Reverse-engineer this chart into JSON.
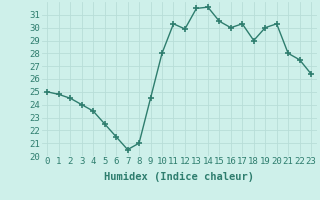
{
  "x": [
    0,
    1,
    2,
    3,
    4,
    5,
    6,
    7,
    8,
    9,
    10,
    11,
    12,
    13,
    14,
    15,
    16,
    17,
    18,
    19,
    20,
    21,
    22,
    23
  ],
  "y": [
    25.0,
    24.8,
    24.5,
    24.0,
    23.5,
    22.5,
    21.5,
    20.5,
    21.0,
    24.5,
    28.0,
    30.3,
    29.9,
    31.5,
    31.6,
    30.5,
    30.0,
    30.3,
    29.0,
    30.0,
    30.3,
    28.0,
    27.5,
    26.4
  ],
  "line_color": "#2e7d6e",
  "marker": "+",
  "marker_size": 4,
  "bg_color": "#cef0ea",
  "grid_color": "#b8ddd8",
  "xlabel": "Humidex (Indice chaleur)",
  "ylim": [
    20,
    32
  ],
  "xlim": [
    -0.5,
    23.5
  ],
  "yticks": [
    20,
    21,
    22,
    23,
    24,
    25,
    26,
    27,
    28,
    29,
    30,
    31
  ],
  "xticks": [
    0,
    1,
    2,
    3,
    4,
    5,
    6,
    7,
    8,
    9,
    10,
    11,
    12,
    13,
    14,
    15,
    16,
    17,
    18,
    19,
    20,
    21,
    22,
    23
  ],
  "xtick_labels": [
    "0",
    "1",
    "2",
    "3",
    "4",
    "5",
    "6",
    "7",
    "8",
    "9",
    "10",
    "11",
    "12",
    "13",
    "14",
    "15",
    "16",
    "17",
    "18",
    "19",
    "20",
    "21",
    "22",
    "23"
  ],
  "xlabel_fontsize": 7.5,
  "tick_fontsize": 6.5,
  "line_width": 1.0
}
